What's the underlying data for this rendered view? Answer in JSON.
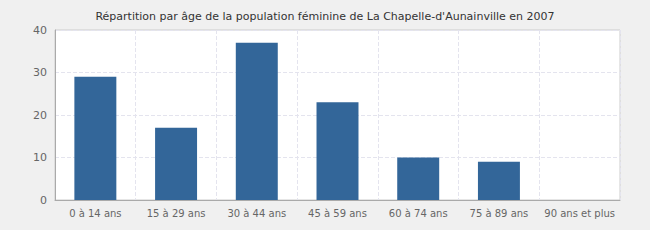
{
  "chart_data": {
    "type": "bar",
    "title": "Répartition par âge de la population féminine de La Chapelle-d'Aunainville en 2007",
    "categories": [
      "0 à 14 ans",
      "15 à 29 ans",
      "30 à 44 ans",
      "45 à 59 ans",
      "60 à 74 ans",
      "75 à 89 ans",
      "90 ans et plus"
    ],
    "values": [
      29,
      17,
      37,
      23,
      10,
      9,
      0
    ],
    "color": "#336699",
    "ylim": [
      0,
      40
    ],
    "yticks": [
      0,
      10,
      20,
      30,
      40
    ],
    "grid": true
  }
}
